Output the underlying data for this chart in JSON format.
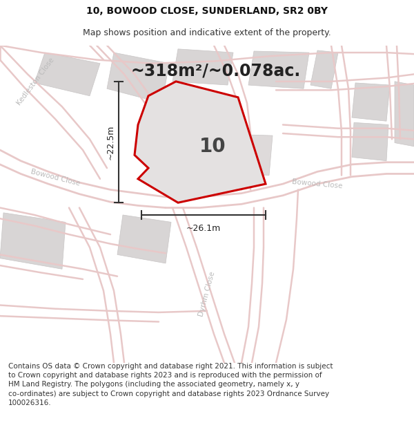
{
  "title_line1": "10, BOWOOD CLOSE, SUNDERLAND, SR2 0BY",
  "title_line2": "Map shows position and indicative extent of the property.",
  "area_text": "~318m²/~0.078ac.",
  "property_number": "10",
  "measure_width": "~26.1m",
  "measure_height": "~22.5m",
  "copyright_text": "Contains OS data © Crown copyright and database right 2021. This information is subject to Crown copyright and database rights 2023 and is reproduced with the permission of HM Land Registry. The polygons (including the associated geometry, namely x, y co-ordinates) are subject to Crown copyright and database rights 2023 Ordnance Survey 100026316.",
  "bg_color": "#e8e6e6",
  "map_bg": "#e8e6e6",
  "property_fill": "#e8e6e6",
  "property_edge": "#cc0000",
  "road_color": "#e8c8c8",
  "block_fill": "#d8d5d5",
  "block_edge": "#c8c5c5",
  "street_label_color": "#bbbbbb",
  "title_fontsize": 10,
  "subtitle_fontsize": 9,
  "area_fontsize": 17,
  "number_fontsize": 20,
  "measure_fontsize": 9,
  "copyright_fontsize": 7.5
}
